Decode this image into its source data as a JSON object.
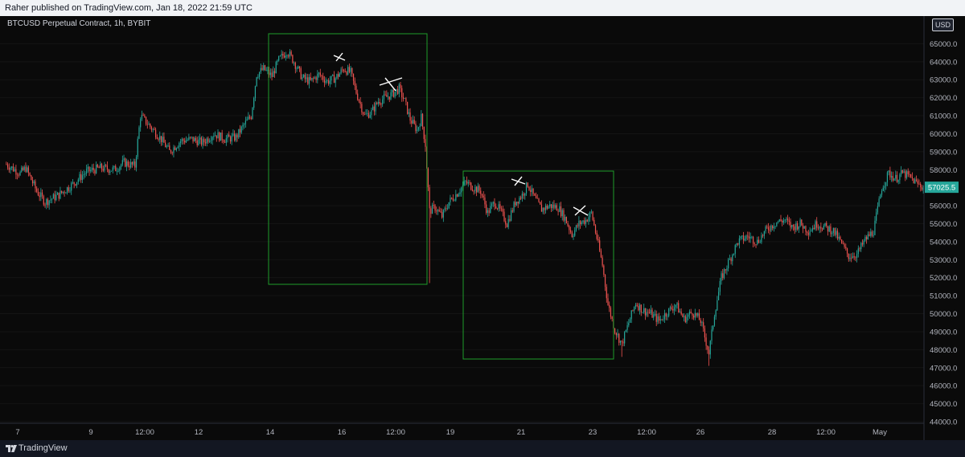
{
  "header": {
    "text": "Raher published on TradingView.com, Jan 18, 2022 21:59 UTC"
  },
  "symbol": {
    "label": "BTCUSD Perpetual Contract, 1h, BYBIT"
  },
  "currency": {
    "label": "USD"
  },
  "footer": {
    "brand": "TradingView",
    "logo_icon": "tradingview-logo-icon"
  },
  "colors": {
    "up": "#26a69a",
    "down": "#ef5350",
    "box": "#1f9c2a",
    "marker": "#ffffff",
    "last_price_bg": "#26a69a"
  },
  "chart_data": {
    "type": "candlestick",
    "interval": "1h",
    "exchange": "BYBIT",
    "ylim": [
      44000,
      66000
    ],
    "y_ticks": [
      44000,
      45000,
      46000,
      47000,
      48000,
      49000,
      50000,
      51000,
      52000,
      53000,
      54000,
      55000,
      56000,
      57000,
      58000,
      59000,
      60000,
      61000,
      62000,
      63000,
      64000,
      65000
    ],
    "y_tick_labels": [
      "44000.0",
      "45000.0",
      "46000.0",
      "47000.0",
      "48000.0",
      "49000.0",
      "50000.0",
      "51000.0",
      "52000.0",
      "53000.0",
      "54000.0",
      "55000.0",
      "56000.0",
      "57000.0",
      "58000.0",
      "59000.0",
      "60000.0",
      "61000.0",
      "62000.0",
      "63000.0",
      "64000.0",
      "65000.0"
    ],
    "x_ticks": [
      "7",
      "9",
      "12:00",
      "12",
      "14",
      "16",
      "12:00",
      "19",
      "21",
      "23",
      "12:00",
      "26",
      "28",
      "12:00",
      "May"
    ],
    "last_price": 57025.5,
    "last_price_label": "57025.5",
    "price_path": [
      {
        "i": 0,
        "p": 58300
      },
      {
        "i": 10,
        "p": 57800
      },
      {
        "i": 14,
        "p": 58100
      },
      {
        "i": 22,
        "p": 56800
      },
      {
        "i": 28,
        "p": 56200
      },
      {
        "i": 38,
        "p": 56600
      },
      {
        "i": 48,
        "p": 57200
      },
      {
        "i": 58,
        "p": 57900
      },
      {
        "i": 68,
        "p": 58100
      },
      {
        "i": 78,
        "p": 58000
      },
      {
        "i": 85,
        "p": 58400
      },
      {
        "i": 93,
        "p": 58200
      },
      {
        "i": 97,
        "p": 61000
      },
      {
        "i": 104,
        "p": 60400
      },
      {
        "i": 112,
        "p": 59700
      },
      {
        "i": 118,
        "p": 59000
      },
      {
        "i": 126,
        "p": 59600
      },
      {
        "i": 134,
        "p": 59700
      },
      {
        "i": 142,
        "p": 59500
      },
      {
        "i": 150,
        "p": 60000
      },
      {
        "i": 158,
        "p": 59700
      },
      {
        "i": 166,
        "p": 59800
      },
      {
        "i": 172,
        "p": 60500
      },
      {
        "i": 177,
        "p": 61000
      },
      {
        "i": 181,
        "p": 63300
      },
      {
        "i": 186,
        "p": 63600
      },
      {
        "i": 192,
        "p": 63200
      },
      {
        "i": 197,
        "p": 64100
      },
      {
        "i": 203,
        "p": 64600
      },
      {
        "i": 208,
        "p": 64000
      },
      {
        "i": 214,
        "p": 63100
      },
      {
        "i": 220,
        "p": 62900
      },
      {
        "i": 226,
        "p": 63300
      },
      {
        "i": 232,
        "p": 62900
      },
      {
        "i": 238,
        "p": 63100
      },
      {
        "i": 244,
        "p": 63600
      },
      {
        "i": 249,
        "p": 63400
      },
      {
        "i": 253,
        "p": 62300
      },
      {
        "i": 259,
        "p": 61000
      },
      {
        "i": 264,
        "p": 61200
      },
      {
        "i": 269,
        "p": 61800
      },
      {
        "i": 274,
        "p": 62000
      },
      {
        "i": 279,
        "p": 62200
      },
      {
        "i": 284,
        "p": 62500
      },
      {
        "i": 288,
        "p": 61800
      },
      {
        "i": 292,
        "p": 60800
      },
      {
        "i": 297,
        "p": 60200
      },
      {
        "i": 300,
        "p": 60900
      },
      {
        "i": 303,
        "p": 59400
      },
      {
        "i": 306,
        "p": 55700
      },
      {
        "i": 310,
        "p": 55900
      },
      {
        "i": 315,
        "p": 55400
      },
      {
        "i": 320,
        "p": 56200
      },
      {
        "i": 326,
        "p": 56700
      },
      {
        "i": 332,
        "p": 57300
      },
      {
        "i": 338,
        "p": 57000
      },
      {
        "i": 343,
        "p": 56800
      },
      {
        "i": 348,
        "p": 55600
      },
      {
        "i": 353,
        "p": 56200
      },
      {
        "i": 358,
        "p": 55600
      },
      {
        "i": 362,
        "p": 55000
      },
      {
        "i": 368,
        "p": 56200
      },
      {
        "i": 373,
        "p": 56600
      },
      {
        "i": 377,
        "p": 57200
      },
      {
        "i": 382,
        "p": 56400
      },
      {
        "i": 387,
        "p": 55800
      },
      {
        "i": 393,
        "p": 56000
      },
      {
        "i": 399,
        "p": 55900
      },
      {
        "i": 404,
        "p": 55300
      },
      {
        "i": 409,
        "p": 54400
      },
      {
        "i": 414,
        "p": 55000
      },
      {
        "i": 419,
        "p": 55200
      },
      {
        "i": 423,
        "p": 55600
      },
      {
        "i": 427,
        "p": 54200
      },
      {
        "i": 431,
        "p": 52700
      },
      {
        "i": 435,
        "p": 50500
      },
      {
        "i": 440,
        "p": 49100
      },
      {
        "i": 445,
        "p": 48300
      },
      {
        "i": 450,
        "p": 49500
      },
      {
        "i": 455,
        "p": 50600
      },
      {
        "i": 460,
        "p": 50200
      },
      {
        "i": 466,
        "p": 50000
      },
      {
        "i": 472,
        "p": 49600
      },
      {
        "i": 478,
        "p": 50100
      },
      {
        "i": 484,
        "p": 50500
      },
      {
        "i": 490,
        "p": 49700
      },
      {
        "i": 496,
        "p": 50100
      },
      {
        "i": 502,
        "p": 49600
      },
      {
        "i": 508,
        "p": 47800
      },
      {
        "i": 512,
        "p": 50000
      },
      {
        "i": 517,
        "p": 52000
      },
      {
        "i": 523,
        "p": 53000
      },
      {
        "i": 529,
        "p": 54000
      },
      {
        "i": 536,
        "p": 54300
      },
      {
        "i": 543,
        "p": 54000
      },
      {
        "i": 550,
        "p": 54700
      },
      {
        "i": 557,
        "p": 55100
      },
      {
        "i": 563,
        "p": 55200
      },
      {
        "i": 568,
        "p": 54800
      },
      {
        "i": 574,
        "p": 55000
      },
      {
        "i": 580,
        "p": 54600
      },
      {
        "i": 586,
        "p": 55000
      },
      {
        "i": 592,
        "p": 54800
      },
      {
        "i": 598,
        "p": 54600
      },
      {
        "i": 603,
        "p": 54000
      },
      {
        "i": 609,
        "p": 53200
      },
      {
        "i": 615,
        "p": 53300
      },
      {
        "i": 621,
        "p": 54100
      },
      {
        "i": 627,
        "p": 54600
      },
      {
        "i": 633,
        "p": 57000
      },
      {
        "i": 638,
        "p": 57800
      },
      {
        "i": 643,
        "p": 57500
      },
      {
        "i": 648,
        "p": 57800
      },
      {
        "i": 653,
        "p": 57600
      },
      {
        "i": 659,
        "p": 57200
      },
      {
        "i": 663,
        "p": 57025.5
      }
    ]
  }
}
